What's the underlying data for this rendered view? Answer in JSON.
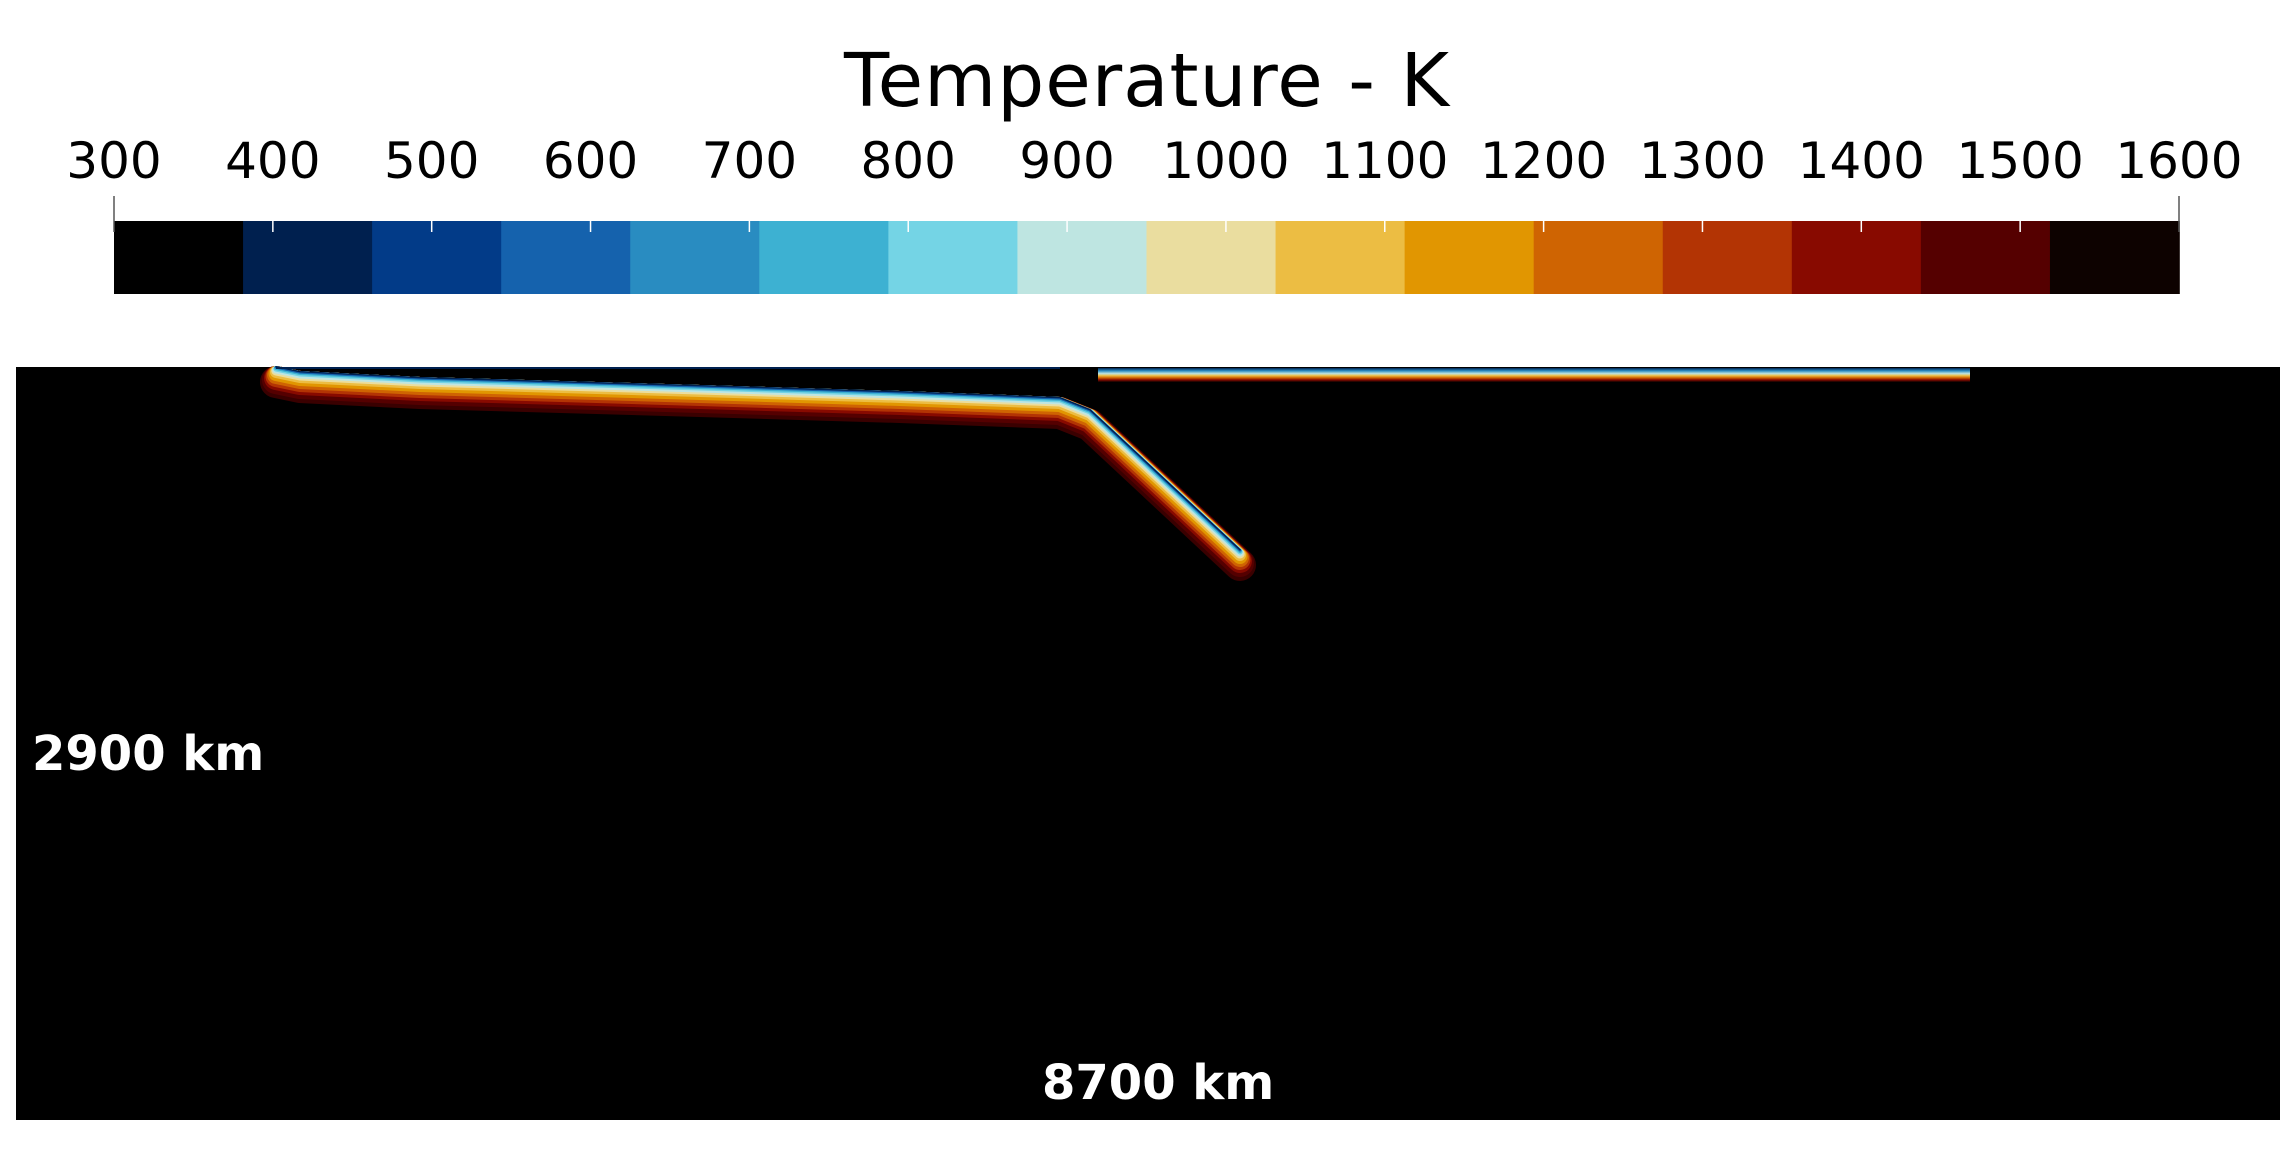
{
  "colorbar": {
    "title": "Temperature - K",
    "ticks": [
      "300",
      "400",
      "500",
      "600",
      "700",
      "800",
      "900",
      "1000",
      "1100",
      "1200",
      "1300",
      "1400",
      "1500",
      "1600"
    ],
    "tick_values": [
      300,
      400,
      500,
      600,
      700,
      800,
      900,
      1000,
      1100,
      1200,
      1300,
      1400,
      1500,
      1600
    ],
    "range": [
      300,
      1600
    ],
    "bins": 16,
    "colors": [
      "#000000",
      "#00204f",
      "#023b88",
      "#1562ad",
      "#298cc1",
      "#3db1d2",
      "#74d4e5",
      "#bee5e1",
      "#eadd9f",
      "#ecbd43",
      "#e19601",
      "#cf6402",
      "#b33404",
      "#880a00",
      "#550000",
      "#0d0200"
    ]
  },
  "domain": {
    "height_label": "2900 km",
    "width_label": "8700 km",
    "background": "#000000"
  }
}
